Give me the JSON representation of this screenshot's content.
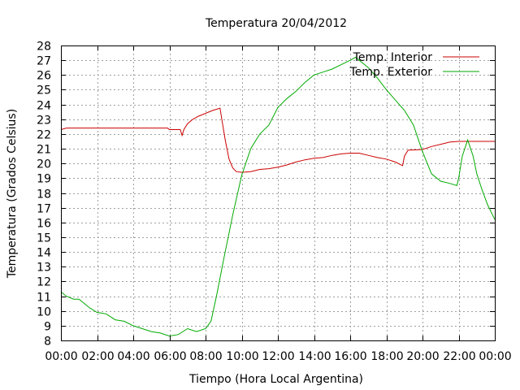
{
  "chart_data": {
    "type": "line",
    "title": "Temperatura 20/04/2012",
    "xlabel": "Tiempo (Hora Local Argentina)",
    "ylabel": "Temperatura (Grados Celsius)",
    "xlim": [
      0,
      24
    ],
    "ylim": [
      8,
      28
    ],
    "grid": true,
    "legend_position": "top-right",
    "x_ticks": [
      {
        "value": 0,
        "label": "00:00"
      },
      {
        "value": 2,
        "label": "02:00"
      },
      {
        "value": 4,
        "label": "04:00"
      },
      {
        "value": 6,
        "label": "06:00"
      },
      {
        "value": 8,
        "label": "08:00"
      },
      {
        "value": 10,
        "label": "10:00"
      },
      {
        "value": 12,
        "label": "12:00"
      },
      {
        "value": 14,
        "label": "14:00"
      },
      {
        "value": 16,
        "label": "16:00"
      },
      {
        "value": 18,
        "label": "18:00"
      },
      {
        "value": 20,
        "label": "20:00"
      },
      {
        "value": 22,
        "label": "22:00"
      },
      {
        "value": 24,
        "label": "00:00"
      }
    ],
    "y_ticks": [
      {
        "value": 8,
        "label": "8"
      },
      {
        "value": 9,
        "label": "9"
      },
      {
        "value": 10,
        "label": "10"
      },
      {
        "value": 11,
        "label": "11"
      },
      {
        "value": 12,
        "label": "12"
      },
      {
        "value": 13,
        "label": "13"
      },
      {
        "value": 14,
        "label": "14"
      },
      {
        "value": 15,
        "label": "15"
      },
      {
        "value": 16,
        "label": "16"
      },
      {
        "value": 17,
        "label": "17"
      },
      {
        "value": 18,
        "label": "18"
      },
      {
        "value": 19,
        "label": "19"
      },
      {
        "value": 20,
        "label": "20"
      },
      {
        "value": 21,
        "label": "21"
      },
      {
        "value": 22,
        "label": "22"
      },
      {
        "value": 23,
        "label": "23"
      },
      {
        "value": 24,
        "label": "24"
      },
      {
        "value": 25,
        "label": "25"
      },
      {
        "value": 26,
        "label": "26"
      },
      {
        "value": 27,
        "label": "27"
      },
      {
        "value": 28,
        "label": "28"
      }
    ],
    "series": [
      {
        "name": "Temp. Interior",
        "color": "#cc0000",
        "points": [
          [
            0,
            22.3
          ],
          [
            0.3,
            22.4
          ],
          [
            1,
            22.4
          ],
          [
            2,
            22.4
          ],
          [
            3,
            22.4
          ],
          [
            4,
            22.4
          ],
          [
            5,
            22.4
          ],
          [
            5.9,
            22.4
          ],
          [
            6.0,
            22.3
          ],
          [
            6.6,
            22.3
          ],
          [
            6.7,
            21.9
          ],
          [
            6.8,
            22.3
          ],
          [
            7.0,
            22.7
          ],
          [
            7.3,
            23.0
          ],
          [
            7.6,
            23.2
          ],
          [
            8.0,
            23.4
          ],
          [
            8.4,
            23.6
          ],
          [
            8.8,
            23.75
          ],
          [
            8.9,
            23.0
          ],
          [
            9.1,
            21.5
          ],
          [
            9.3,
            20.3
          ],
          [
            9.5,
            19.7
          ],
          [
            9.7,
            19.45
          ],
          [
            10.0,
            19.4
          ],
          [
            10.5,
            19.45
          ],
          [
            11,
            19.6
          ],
          [
            11.5,
            19.65
          ],
          [
            12,
            19.75
          ],
          [
            12.5,
            19.9
          ],
          [
            13,
            20.1
          ],
          [
            13.5,
            20.25
          ],
          [
            14,
            20.35
          ],
          [
            14.5,
            20.4
          ],
          [
            15,
            20.55
          ],
          [
            15.5,
            20.65
          ],
          [
            16,
            20.7
          ],
          [
            16.5,
            20.7
          ],
          [
            17,
            20.55
          ],
          [
            17.5,
            20.4
          ],
          [
            18,
            20.3
          ],
          [
            18.5,
            20.1
          ],
          [
            18.9,
            19.85
          ],
          [
            19.0,
            20.5
          ],
          [
            19.2,
            20.9
          ],
          [
            20,
            20.95
          ],
          [
            20.5,
            21.15
          ],
          [
            21,
            21.3
          ],
          [
            21.5,
            21.45
          ],
          [
            22,
            21.5
          ],
          [
            22.5,
            21.5
          ],
          [
            23,
            21.5
          ],
          [
            23.5,
            21.5
          ],
          [
            24,
            21.5
          ]
        ]
      },
      {
        "name": "Temp. Exterior",
        "color": "#00aa00",
        "points": [
          [
            0,
            11.3
          ],
          [
            0.3,
            11.0
          ],
          [
            0.7,
            10.8
          ],
          [
            1.0,
            10.8
          ],
          [
            1.3,
            10.5
          ],
          [
            1.6,
            10.2
          ],
          [
            2.0,
            9.9
          ],
          [
            2.5,
            9.8
          ],
          [
            3.0,
            9.4
          ],
          [
            3.5,
            9.3
          ],
          [
            4.0,
            9.0
          ],
          [
            4.5,
            8.8
          ],
          [
            5.0,
            8.6
          ],
          [
            5.5,
            8.5
          ],
          [
            6.0,
            8.3
          ],
          [
            6.5,
            8.4
          ],
          [
            7.0,
            8.8
          ],
          [
            7.5,
            8.6
          ],
          [
            8.0,
            8.8
          ],
          [
            8.3,
            9.3
          ],
          [
            8.6,
            11.0
          ],
          [
            9.0,
            13.5
          ],
          [
            9.5,
            16.5
          ],
          [
            10.0,
            19.2
          ],
          [
            10.5,
            21.0
          ],
          [
            11.0,
            22.0
          ],
          [
            11.5,
            22.6
          ],
          [
            12.0,
            23.8
          ],
          [
            12.5,
            24.4
          ],
          [
            13.0,
            24.9
          ],
          [
            13.5,
            25.5
          ],
          [
            14.0,
            26.0
          ],
          [
            14.5,
            26.2
          ],
          [
            15.0,
            26.4
          ],
          [
            15.5,
            26.7
          ],
          [
            16.0,
            27.0
          ],
          [
            16.3,
            27.2
          ],
          [
            16.6,
            26.9
          ],
          [
            17.0,
            26.5
          ],
          [
            17.5,
            25.8
          ],
          [
            18.0,
            25.0
          ],
          [
            18.5,
            24.3
          ],
          [
            19.0,
            23.6
          ],
          [
            19.5,
            22.6
          ],
          [
            20.0,
            20.8
          ],
          [
            20.5,
            19.3
          ],
          [
            21.0,
            18.8
          ],
          [
            21.5,
            18.65
          ],
          [
            21.9,
            18.5
          ],
          [
            22.0,
            19.0
          ],
          [
            22.2,
            20.5
          ],
          [
            22.5,
            21.6
          ],
          [
            22.8,
            20.5
          ],
          [
            23.0,
            19.3
          ],
          [
            23.3,
            18.2
          ],
          [
            23.6,
            17.2
          ],
          [
            24.0,
            16.2
          ]
        ]
      }
    ]
  }
}
